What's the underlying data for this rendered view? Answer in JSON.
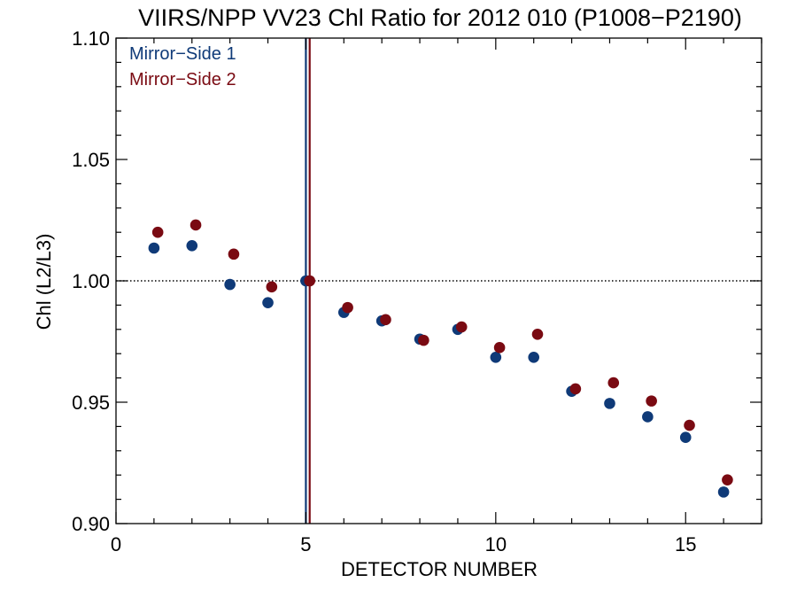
{
  "chart_data": {
    "type": "scatter",
    "title": "VIIRS/NPP VV23 Chl Ratio for 2012 010 (P1008−P2190)",
    "xlabel": "DETECTOR NUMBER",
    "ylabel": "Chl (L2/L3)",
    "xlim": [
      0,
      17
    ],
    "ylim": [
      0.9,
      1.1
    ],
    "xticks": [
      0,
      5,
      10,
      15
    ],
    "xtick_labels": [
      "0",
      "5",
      "10",
      "15"
    ],
    "yticks": [
      0.9,
      0.95,
      1.0,
      1.05,
      1.1
    ],
    "ytick_labels": [
      "0.90",
      "0.95",
      "1.00",
      "1.05",
      "1.10"
    ],
    "grid": false,
    "legend_position": "top-left",
    "reference_line_y": 1.0,
    "series": [
      {
        "name": "Mirror−Side 1",
        "color": "#0f3a78",
        "x": [
          1,
          2,
          3,
          4,
          5,
          6,
          7,
          8,
          9,
          10,
          11,
          12,
          13,
          14,
          15,
          16
        ],
        "y": [
          1.0135,
          1.0145,
          0.9985,
          0.991,
          1.0,
          0.987,
          0.9835,
          0.976,
          0.98,
          0.9685,
          0.9685,
          0.9545,
          0.9495,
          0.944,
          0.9355,
          0.913
        ],
        "vline_x": 5
      },
      {
        "name": "Mirror−Side 2",
        "color": "#7a0a12",
        "x": [
          1.1,
          2.1,
          3.1,
          4.1,
          5.1,
          6.1,
          7.1,
          8.1,
          9.1,
          10.1,
          11.1,
          12.1,
          13.1,
          14.1,
          15.1,
          16.1
        ],
        "y": [
          1.02,
          1.023,
          1.011,
          0.9975,
          1.0,
          0.989,
          0.984,
          0.9755,
          0.981,
          0.9725,
          0.978,
          0.9555,
          0.958,
          0.9505,
          0.9405,
          0.918
        ],
        "vline_x": 5.1
      }
    ]
  }
}
